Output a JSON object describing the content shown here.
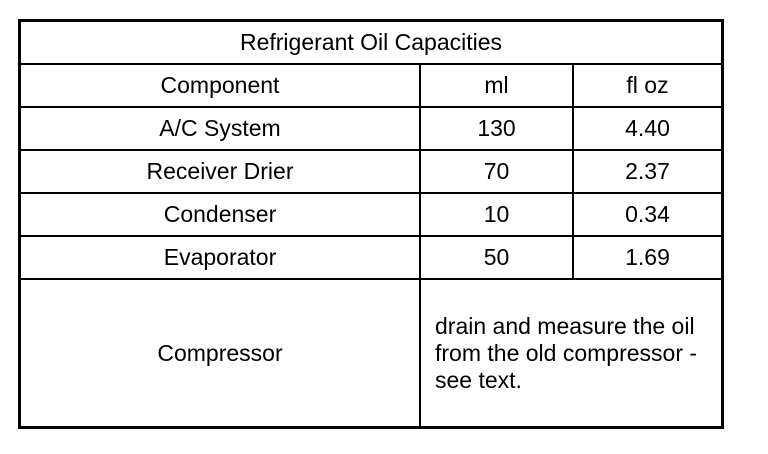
{
  "title": "Refrigerant Oil Capacities",
  "headers": [
    "Component",
    "ml",
    "fl oz"
  ],
  "rows": [
    {
      "component": "A/C System",
      "ml": "130",
      "fl_oz": "4.40"
    },
    {
      "component": "Receiver Drier",
      "ml": "70",
      "fl_oz": "2.37"
    },
    {
      "component": "Condenser",
      "ml": "10",
      "fl_oz": "0.34"
    },
    {
      "component": "Evaporator",
      "ml": "50",
      "fl_oz": "1.69"
    }
  ],
  "compressor": {
    "component": "Compressor",
    "note": "drain and measure the oil from the old compressor - see text."
  }
}
